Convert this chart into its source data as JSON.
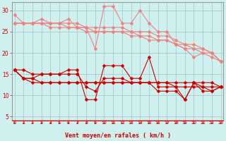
{
  "title": "",
  "xlabel": "Vent moyen/en rafales ( km/h )",
  "ylabel": "",
  "background_color": "#cff0ee",
  "grid_color": "#aacccc",
  "x": [
    0,
    1,
    2,
    3,
    4,
    5,
    6,
    7,
    8,
    9,
    10,
    11,
    12,
    13,
    14,
    15,
    16,
    17,
    18,
    19,
    20,
    21,
    22,
    23
  ],
  "line1_pink": [
    29,
    27,
    27,
    28,
    27,
    27,
    28,
    26,
    26,
    21,
    31,
    31,
    27,
    27,
    30,
    27,
    25,
    25,
    22,
    21,
    19,
    20,
    19,
    18
  ],
  "line2_pink": [
    27,
    27,
    27,
    27,
    27,
    27,
    27,
    27,
    26,
    26,
    26,
    26,
    26,
    25,
    25,
    25,
    24,
    24,
    23,
    22,
    22,
    21,
    20,
    18
  ],
  "line3_pink": [
    27,
    27,
    27,
    27,
    27,
    27,
    26,
    26,
    25,
    25,
    25,
    25,
    25,
    25,
    24,
    24,
    23,
    23,
    22,
    22,
    21,
    21,
    20,
    18
  ],
  "line4_pink": [
    27,
    27,
    27,
    27,
    26,
    26,
    26,
    26,
    26,
    25,
    25,
    25,
    25,
    24,
    24,
    23,
    23,
    23,
    22,
    21,
    21,
    20,
    20,
    18
  ],
  "line1_red": [
    16,
    16,
    15,
    15,
    15,
    15,
    16,
    16,
    9,
    9,
    17,
    17,
    17,
    14,
    14,
    19,
    12,
    12,
    12,
    9,
    13,
    12,
    11,
    12
  ],
  "line2_red": [
    16,
    14,
    14,
    15,
    15,
    15,
    15,
    15,
    12,
    11,
    14,
    14,
    14,
    13,
    13,
    13,
    11,
    11,
    11,
    9,
    13,
    11,
    11,
    12
  ],
  "line3_red": [
    16,
    14,
    14,
    13,
    13,
    13,
    13,
    13,
    13,
    13,
    13,
    13,
    13,
    13,
    13,
    13,
    13,
    13,
    13,
    13,
    13,
    13,
    13,
    12
  ],
  "line4_red": [
    16,
    14,
    13,
    13,
    13,
    13,
    13,
    13,
    13,
    13,
    13,
    13,
    13,
    13,
    13,
    13,
    13,
    13,
    12,
    12,
    12,
    12,
    12,
    12
  ],
  "color_pink": "#f08080",
  "color_red": "#cc0000",
  "ylim": [
    4,
    32
  ],
  "xlim": [
    -0.3,
    23.3
  ],
  "yticks": [
    5,
    10,
    15,
    20,
    25,
    30
  ],
  "xticks": [
    0,
    1,
    2,
    3,
    4,
    5,
    6,
    7,
    8,
    9,
    10,
    11,
    12,
    13,
    14,
    15,
    16,
    17,
    18,
    19,
    20,
    21,
    22,
    23
  ]
}
